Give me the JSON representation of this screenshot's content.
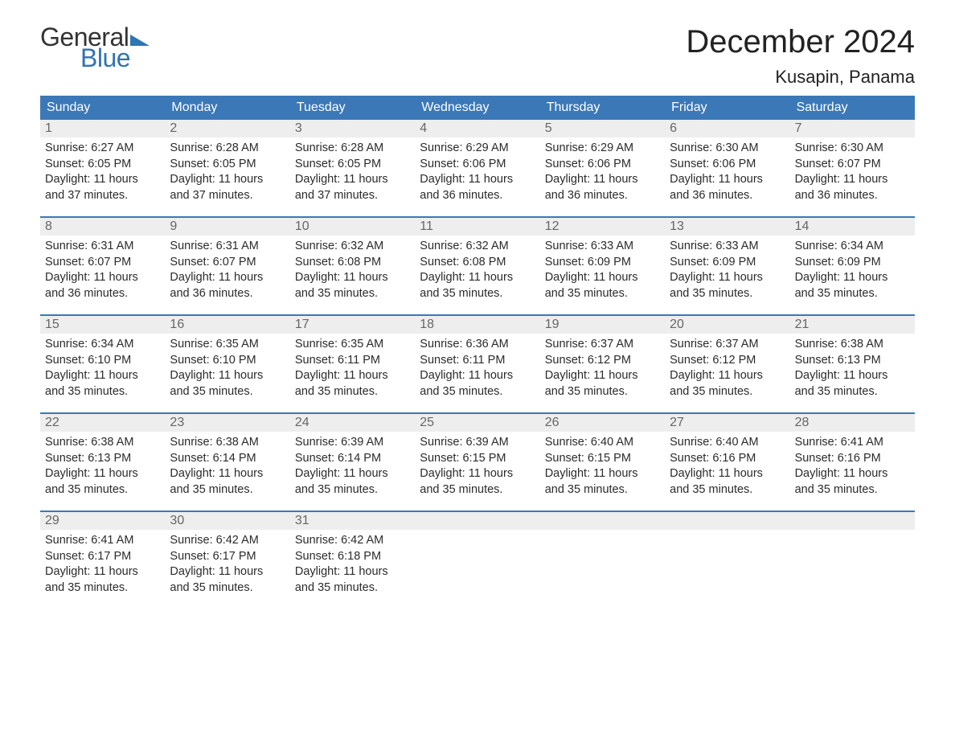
{
  "logo": {
    "general": "General",
    "blue": "Blue",
    "accent_color": "#2f74b5"
  },
  "title": "December 2024",
  "location": "Kusapin, Panama",
  "weekday_bg": "#3b78b8",
  "daynum_bg": "#eeeeee",
  "daynum_color": "#666666",
  "text_color": "#2b2b2b",
  "weekdays": [
    "Sunday",
    "Monday",
    "Tuesday",
    "Wednesday",
    "Thursday",
    "Friday",
    "Saturday"
  ],
  "days": [
    {
      "n": 1,
      "sunrise": "6:27 AM",
      "sunset": "6:05 PM",
      "daylight": "11 hours and 37 minutes."
    },
    {
      "n": 2,
      "sunrise": "6:28 AM",
      "sunset": "6:05 PM",
      "daylight": "11 hours and 37 minutes."
    },
    {
      "n": 3,
      "sunrise": "6:28 AM",
      "sunset": "6:05 PM",
      "daylight": "11 hours and 37 minutes."
    },
    {
      "n": 4,
      "sunrise": "6:29 AM",
      "sunset": "6:06 PM",
      "daylight": "11 hours and 36 minutes."
    },
    {
      "n": 5,
      "sunrise": "6:29 AM",
      "sunset": "6:06 PM",
      "daylight": "11 hours and 36 minutes."
    },
    {
      "n": 6,
      "sunrise": "6:30 AM",
      "sunset": "6:06 PM",
      "daylight": "11 hours and 36 minutes."
    },
    {
      "n": 7,
      "sunrise": "6:30 AM",
      "sunset": "6:07 PM",
      "daylight": "11 hours and 36 minutes."
    },
    {
      "n": 8,
      "sunrise": "6:31 AM",
      "sunset": "6:07 PM",
      "daylight": "11 hours and 36 minutes."
    },
    {
      "n": 9,
      "sunrise": "6:31 AM",
      "sunset": "6:07 PM",
      "daylight": "11 hours and 36 minutes."
    },
    {
      "n": 10,
      "sunrise": "6:32 AM",
      "sunset": "6:08 PM",
      "daylight": "11 hours and 35 minutes."
    },
    {
      "n": 11,
      "sunrise": "6:32 AM",
      "sunset": "6:08 PM",
      "daylight": "11 hours and 35 minutes."
    },
    {
      "n": 12,
      "sunrise": "6:33 AM",
      "sunset": "6:09 PM",
      "daylight": "11 hours and 35 minutes."
    },
    {
      "n": 13,
      "sunrise": "6:33 AM",
      "sunset": "6:09 PM",
      "daylight": "11 hours and 35 minutes."
    },
    {
      "n": 14,
      "sunrise": "6:34 AM",
      "sunset": "6:09 PM",
      "daylight": "11 hours and 35 minutes."
    },
    {
      "n": 15,
      "sunrise": "6:34 AM",
      "sunset": "6:10 PM",
      "daylight": "11 hours and 35 minutes."
    },
    {
      "n": 16,
      "sunrise": "6:35 AM",
      "sunset": "6:10 PM",
      "daylight": "11 hours and 35 minutes."
    },
    {
      "n": 17,
      "sunrise": "6:35 AM",
      "sunset": "6:11 PM",
      "daylight": "11 hours and 35 minutes."
    },
    {
      "n": 18,
      "sunrise": "6:36 AM",
      "sunset": "6:11 PM",
      "daylight": "11 hours and 35 minutes."
    },
    {
      "n": 19,
      "sunrise": "6:37 AM",
      "sunset": "6:12 PM",
      "daylight": "11 hours and 35 minutes."
    },
    {
      "n": 20,
      "sunrise": "6:37 AM",
      "sunset": "6:12 PM",
      "daylight": "11 hours and 35 minutes."
    },
    {
      "n": 21,
      "sunrise": "6:38 AM",
      "sunset": "6:13 PM",
      "daylight": "11 hours and 35 minutes."
    },
    {
      "n": 22,
      "sunrise": "6:38 AM",
      "sunset": "6:13 PM",
      "daylight": "11 hours and 35 minutes."
    },
    {
      "n": 23,
      "sunrise": "6:38 AM",
      "sunset": "6:14 PM",
      "daylight": "11 hours and 35 minutes."
    },
    {
      "n": 24,
      "sunrise": "6:39 AM",
      "sunset": "6:14 PM",
      "daylight": "11 hours and 35 minutes."
    },
    {
      "n": 25,
      "sunrise": "6:39 AM",
      "sunset": "6:15 PM",
      "daylight": "11 hours and 35 minutes."
    },
    {
      "n": 26,
      "sunrise": "6:40 AM",
      "sunset": "6:15 PM",
      "daylight": "11 hours and 35 minutes."
    },
    {
      "n": 27,
      "sunrise": "6:40 AM",
      "sunset": "6:16 PM",
      "daylight": "11 hours and 35 minutes."
    },
    {
      "n": 28,
      "sunrise": "6:41 AM",
      "sunset": "6:16 PM",
      "daylight": "11 hours and 35 minutes."
    },
    {
      "n": 29,
      "sunrise": "6:41 AM",
      "sunset": "6:17 PM",
      "daylight": "11 hours and 35 minutes."
    },
    {
      "n": 30,
      "sunrise": "6:42 AM",
      "sunset": "6:17 PM",
      "daylight": "11 hours and 35 minutes."
    },
    {
      "n": 31,
      "sunrise": "6:42 AM",
      "sunset": "6:18 PM",
      "daylight": "11 hours and 35 minutes."
    }
  ],
  "labels": {
    "sunrise": "Sunrise:",
    "sunset": "Sunset:",
    "daylight": "Daylight:"
  },
  "start_offset": 0,
  "total_cells": 35
}
